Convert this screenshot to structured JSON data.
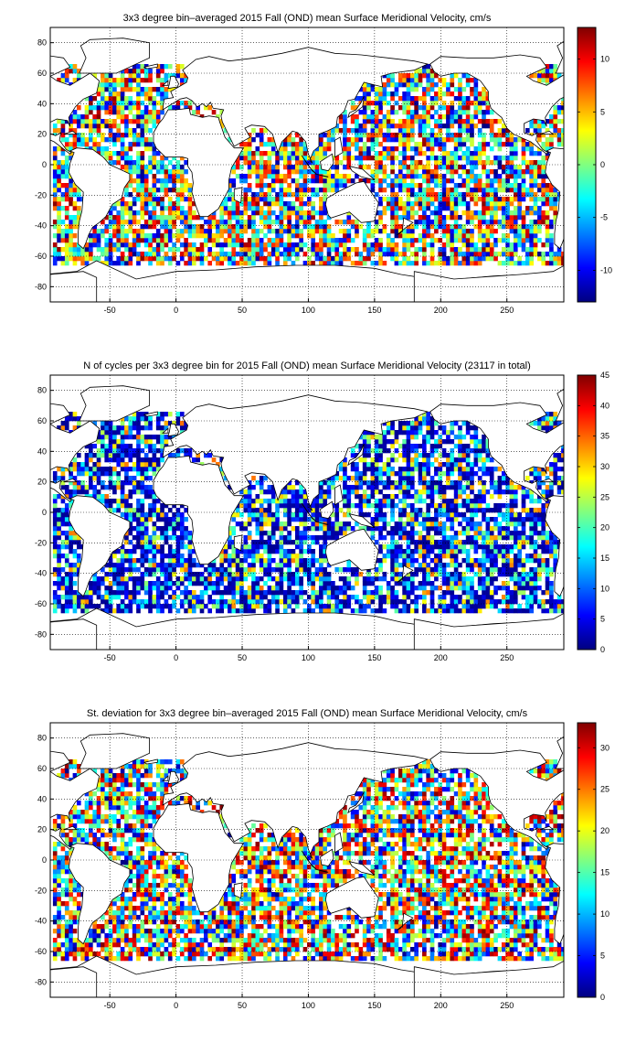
{
  "figure": {
    "panels": [
      {
        "id": "mean-velocity",
        "title": "3x3 degree bin–averaged 2015 Fall (OND) mean Surface Meridional Velocity, cm/s",
        "colorbar": {
          "min": -13,
          "max": 13,
          "ticks": [
            -10,
            -5,
            0,
            5,
            10
          ]
        },
        "field": "mean"
      },
      {
        "id": "cycle-count",
        "title": "N of cycles per 3x3 degree bin for 2015 Fall (OND) mean Surface Meridional Velocity (23117 in total)",
        "colorbar": {
          "min": 0,
          "max": 45,
          "ticks": [
            0,
            5,
            10,
            15,
            20,
            25,
            30,
            35,
            40,
            45
          ]
        },
        "field": "count"
      },
      {
        "id": "std-velocity",
        "title": "St. deviation for 3x3 degree bin–averaged 2015 Fall (OND) mean Surface Meridional Velocity, cm/s",
        "colorbar": {
          "min": 0,
          "max": 33,
          "ticks": [
            0,
            5,
            10,
            15,
            20,
            25,
            30
          ]
        },
        "field": "std"
      }
    ],
    "axes": {
      "xlim": [
        -95,
        293
      ],
      "ylim": [
        -90,
        90
      ],
      "xticks": [
        -50,
        0,
        50,
        100,
        150,
        200,
        250
      ],
      "yticks": [
        -80,
        -60,
        -40,
        -20,
        0,
        20,
        40,
        60,
        80
      ],
      "grid": true,
      "colormap": "jet",
      "bin_size_deg": 3
    }
  }
}
